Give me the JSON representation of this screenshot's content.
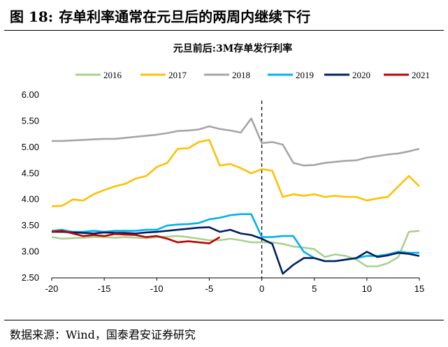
{
  "figure": {
    "number": "图 18:",
    "title": "存单利率通常在元旦后的两周内继续下行",
    "source": "数据来源：Wind，国泰君安证券研究"
  },
  "chart_data": {
    "type": "line",
    "title": "元旦前后:3M存单发行利率",
    "xlabel": "",
    "ylabel": "",
    "xlim": [
      -20,
      15
    ],
    "ylim": [
      2.5,
      6.0
    ],
    "x_ticks": [
      -20,
      -15,
      -10,
      -5,
      0,
      5,
      10,
      15
    ],
    "y_ticks": [
      "6.00",
      "5.50",
      "5.00",
      "4.50",
      "4.00",
      "3.50",
      "3.00",
      "2.50"
    ],
    "vertical_marker": {
      "x": 0,
      "style": "dashed"
    },
    "grid": false,
    "legend_position": "top",
    "series": [
      {
        "name": "2016",
        "color": "#a9d18e",
        "points": [
          [
            -20,
            3.28
          ],
          [
            -19,
            3.25
          ],
          [
            -18,
            3.26
          ],
          [
            -17,
            3.27
          ],
          [
            -16,
            3.28
          ],
          [
            -15,
            3.28
          ],
          [
            -14,
            3.27
          ],
          [
            -13,
            3.28
          ],
          [
            -12,
            3.27
          ],
          [
            -11,
            3.26
          ],
          [
            -10,
            3.28
          ],
          [
            -9,
            3.29
          ],
          [
            -8,
            3.3
          ],
          [
            -7,
            3.28
          ],
          [
            -6,
            3.25
          ],
          [
            -5,
            3.22
          ],
          [
            -4,
            3.22
          ],
          [
            -3,
            3.25
          ],
          [
            -2,
            3.22
          ],
          [
            -1,
            3.18
          ],
          [
            0,
            3.18
          ],
          [
            1,
            3.18
          ],
          [
            2,
            3.15
          ],
          [
            3,
            3.1
          ],
          [
            4,
            3.08
          ],
          [
            5,
            3.05
          ],
          [
            6,
            2.9
          ],
          [
            7,
            2.95
          ],
          [
            8,
            2.92
          ],
          [
            9,
            2.85
          ],
          [
            10,
            2.72
          ],
          [
            11,
            2.72
          ],
          [
            12,
            2.78
          ],
          [
            13,
            2.9
          ],
          [
            14,
            3.38
          ],
          [
            15,
            3.4
          ]
        ]
      },
      {
        "name": "2017",
        "color": "#ffc000",
        "points": [
          [
            -20,
            3.87
          ],
          [
            -19,
            3.88
          ],
          [
            -18,
            4.0
          ],
          [
            -17,
            3.98
          ],
          [
            -16,
            4.1
          ],
          [
            -15,
            4.18
          ],
          [
            -14,
            4.25
          ],
          [
            -13,
            4.3
          ],
          [
            -12,
            4.4
          ],
          [
            -11,
            4.45
          ],
          [
            -10,
            4.62
          ],
          [
            -9,
            4.7
          ],
          [
            -8,
            4.97
          ],
          [
            -7,
            4.98
          ],
          [
            -6,
            5.1
          ],
          [
            -5,
            5.14
          ],
          [
            -4,
            4.65
          ],
          [
            -3,
            4.68
          ],
          [
            -2,
            4.6
          ],
          [
            -1,
            4.5
          ],
          [
            0,
            4.58
          ],
          [
            1,
            4.55
          ],
          [
            2,
            4.05
          ],
          [
            3,
            4.1
          ],
          [
            4,
            4.07
          ],
          [
            5,
            4.1
          ],
          [
            6,
            4.05
          ],
          [
            7,
            4.07
          ],
          [
            8,
            4.05
          ],
          [
            9,
            4.05
          ],
          [
            10,
            3.98
          ],
          [
            11,
            4.02
          ],
          [
            12,
            4.05
          ],
          [
            13,
            4.25
          ],
          [
            14,
            4.45
          ],
          [
            15,
            4.25
          ]
        ]
      },
      {
        "name": "2018",
        "color": "#a6a6a6",
        "points": [
          [
            -20,
            5.12
          ],
          [
            -19,
            5.12
          ],
          [
            -18,
            5.13
          ],
          [
            -17,
            5.14
          ],
          [
            -16,
            5.15
          ],
          [
            -15,
            5.16
          ],
          [
            -14,
            5.16
          ],
          [
            -13,
            5.18
          ],
          [
            -12,
            5.2
          ],
          [
            -11,
            5.22
          ],
          [
            -10,
            5.24
          ],
          [
            -9,
            5.27
          ],
          [
            -8,
            5.31
          ],
          [
            -7,
            5.32
          ],
          [
            -6,
            5.34
          ],
          [
            -5,
            5.4
          ],
          [
            -4,
            5.35
          ],
          [
            -3,
            5.32
          ],
          [
            -2,
            5.28
          ],
          [
            -1,
            5.55
          ],
          [
            0,
            5.08
          ],
          [
            1,
            5.1
          ],
          [
            2,
            5.05
          ],
          [
            3,
            4.7
          ],
          [
            4,
            4.65
          ],
          [
            5,
            4.66
          ],
          [
            6,
            4.7
          ],
          [
            7,
            4.72
          ],
          [
            8,
            4.74
          ],
          [
            9,
            4.75
          ],
          [
            10,
            4.8
          ],
          [
            11,
            4.83
          ],
          [
            12,
            4.86
          ],
          [
            13,
            4.88
          ],
          [
            14,
            4.92
          ],
          [
            15,
            4.97
          ]
        ]
      },
      {
        "name": "2019",
        "color": "#00b0f0",
        "points": [
          [
            -20,
            3.4
          ],
          [
            -19,
            3.42
          ],
          [
            -18,
            3.38
          ],
          [
            -17,
            3.38
          ],
          [
            -16,
            3.4
          ],
          [
            -15,
            3.38
          ],
          [
            -14,
            3.4
          ],
          [
            -13,
            3.4
          ],
          [
            -12,
            3.4
          ],
          [
            -11,
            3.42
          ],
          [
            -10,
            3.42
          ],
          [
            -9,
            3.5
          ],
          [
            -8,
            3.52
          ],
          [
            -7,
            3.53
          ],
          [
            -6,
            3.55
          ],
          [
            -5,
            3.62
          ],
          [
            -4,
            3.65
          ],
          [
            -3,
            3.7
          ],
          [
            -2,
            3.72
          ],
          [
            -1,
            3.72
          ],
          [
            0,
            3.28
          ],
          [
            1,
            3.28
          ],
          [
            2,
            3.3
          ],
          [
            3,
            3.3
          ],
          [
            4,
            3.0
          ],
          [
            5,
            2.88
          ],
          [
            6,
            2.82
          ],
          [
            7,
            2.82
          ],
          [
            8,
            2.85
          ],
          [
            9,
            2.88
          ],
          [
            10,
            2.92
          ],
          [
            11,
            2.92
          ],
          [
            12,
            2.95
          ],
          [
            13,
            3.0
          ],
          [
            14,
            2.98
          ],
          [
            15,
            2.98
          ]
        ]
      },
      {
        "name": "2020",
        "color": "#002060",
        "points": [
          [
            -20,
            3.38
          ],
          [
            -19,
            3.38
          ],
          [
            -18,
            3.37
          ],
          [
            -17,
            3.36
          ],
          [
            -16,
            3.35
          ],
          [
            -15,
            3.37
          ],
          [
            -14,
            3.36
          ],
          [
            -13,
            3.36
          ],
          [
            -12,
            3.35
          ],
          [
            -11,
            3.37
          ],
          [
            -10,
            3.38
          ],
          [
            -9,
            3.4
          ],
          [
            -8,
            3.42
          ],
          [
            -7,
            3.44
          ],
          [
            -6,
            3.46
          ],
          [
            -5,
            3.47
          ],
          [
            -4,
            3.38
          ],
          [
            -3,
            3.42
          ],
          [
            -2,
            3.35
          ],
          [
            -1,
            3.32
          ],
          [
            0,
            3.25
          ],
          [
            1,
            3.15
          ],
          [
            2,
            2.58
          ],
          [
            3,
            2.75
          ],
          [
            4,
            2.88
          ],
          [
            5,
            2.88
          ],
          [
            6,
            2.82
          ],
          [
            7,
            2.82
          ],
          [
            8,
            2.85
          ],
          [
            9,
            2.88
          ],
          [
            10,
            3.0
          ],
          [
            11,
            2.9
          ],
          [
            12,
            2.93
          ],
          [
            13,
            2.98
          ],
          [
            14,
            2.96
          ],
          [
            15,
            2.92
          ]
        ]
      },
      {
        "name": "2021",
        "color": "#c00000",
        "points": [
          [
            -20,
            3.38
          ],
          [
            -19,
            3.4
          ],
          [
            -18,
            3.35
          ],
          [
            -17,
            3.3
          ],
          [
            -16,
            3.32
          ],
          [
            -15,
            3.3
          ],
          [
            -14,
            3.34
          ],
          [
            -13,
            3.33
          ],
          [
            -12,
            3.32
          ],
          [
            -11,
            3.28
          ],
          [
            -10,
            3.3
          ],
          [
            -9,
            3.25
          ],
          [
            -8,
            3.18
          ],
          [
            -7,
            3.2
          ],
          [
            -6,
            3.18
          ],
          [
            -5,
            3.16
          ],
          [
            -4,
            3.28
          ]
        ]
      }
    ]
  }
}
